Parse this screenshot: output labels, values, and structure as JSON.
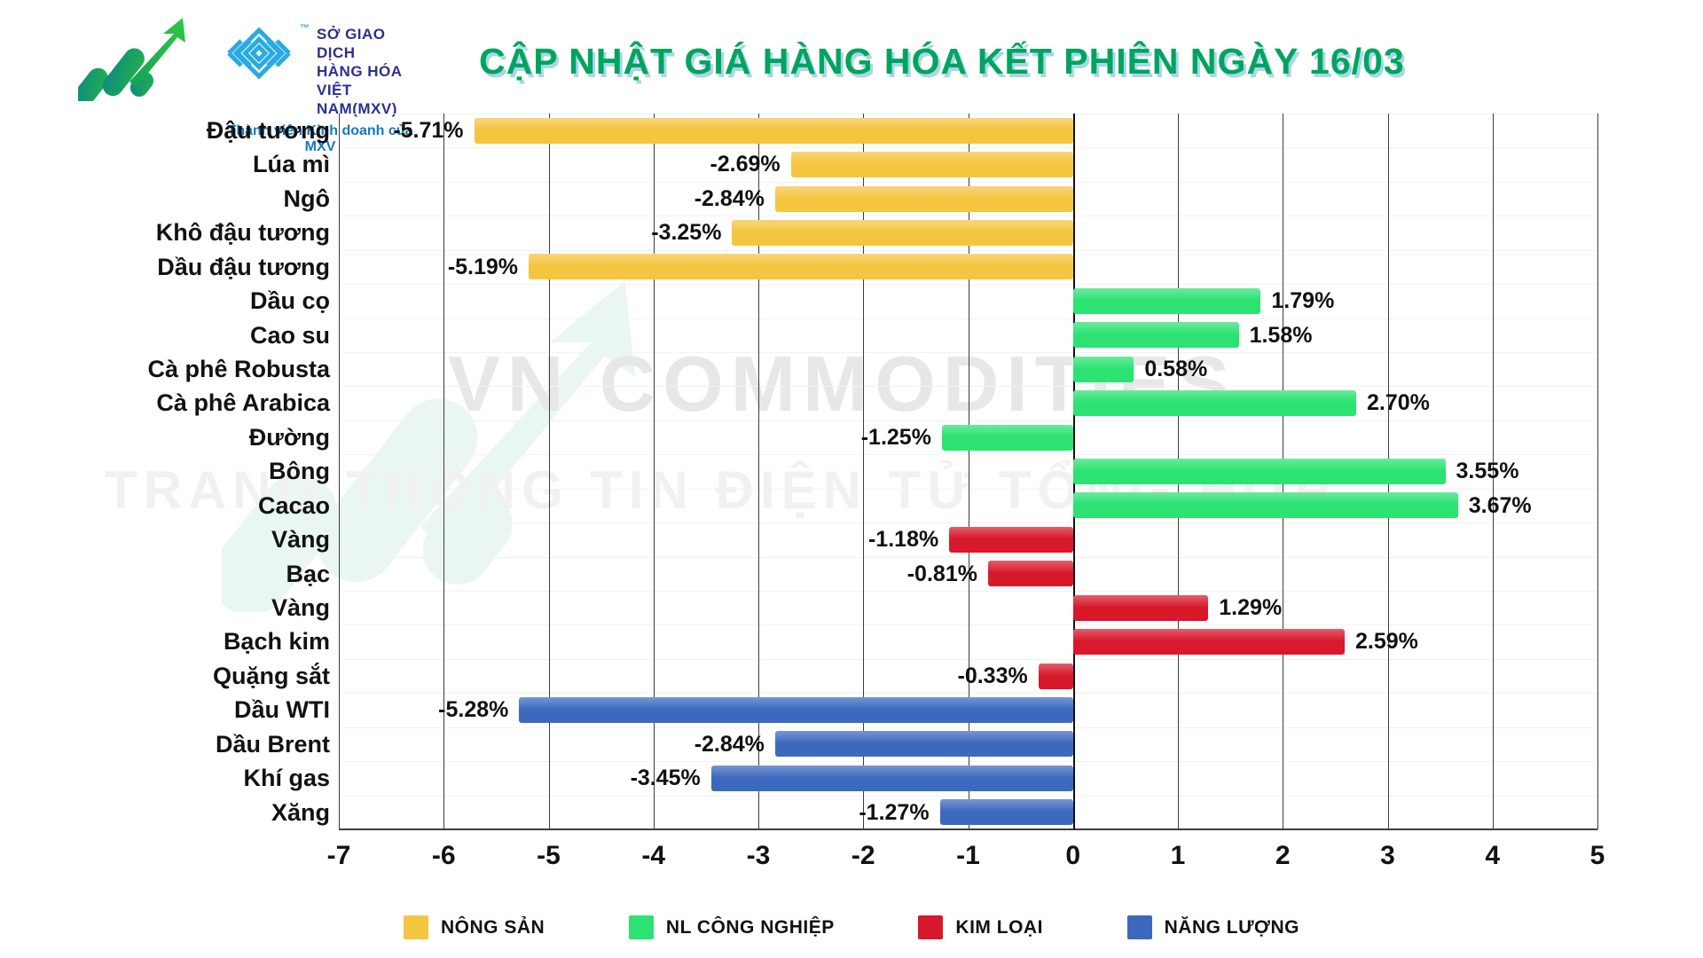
{
  "header": {
    "title": "CẬP NHẬT GIÁ HÀNG HÓA KẾT PHIÊN NGÀY 16/03",
    "mxv": {
      "trademark": "™",
      "name_lines": [
        "SỞ GIAO DỊCH",
        "HÀNG HÓA",
        "VIỆT NAM(MXV)"
      ],
      "member_text": "Thành viên Kinh doanh của MXV"
    }
  },
  "colors": {
    "title_green": "#00A45F",
    "title_shadow": "#A9D6E8",
    "mxv_navy": "#2D2F8F",
    "mxv_blue": "#29ABE2",
    "member_blue": "#1778BE",
    "gridline": "#3d3d3d",
    "row_line": "#f2f2f2",
    "watermark_1": "#e7e7e7",
    "watermark_2": "#f1f1f1",
    "watermark_logo_green": "#00A45F"
  },
  "watermarks": {
    "line1": "VN COMMODITIES",
    "line2": "TRANG THÔNG TIN ĐIỆN TỬ TỔNG HỢP"
  },
  "chart_data": {
    "type": "bar",
    "orientation": "horizontal",
    "title": "CẬP NHẬT GIÁ HÀNG HÓA KẾT PHIÊN NGÀY 16/03",
    "xlim": [
      -7,
      5
    ],
    "xticks": [
      -7,
      -6,
      -5,
      -4,
      -3,
      -2,
      -1,
      0,
      1,
      2,
      3,
      4,
      5
    ],
    "grid": true,
    "legend_position": "bottom",
    "rows": [
      {
        "category": "Đậu tương",
        "value": -5.71,
        "label": "-5.71%",
        "group": "NÔNG SẢN"
      },
      {
        "category": "Lúa mì",
        "value": -2.69,
        "label": "-2.69%",
        "group": "NÔNG SẢN"
      },
      {
        "category": "Ngô",
        "value": -2.84,
        "label": "-2.84%",
        "group": "NÔNG SẢN"
      },
      {
        "category": "Khô đậu tương",
        "value": -3.25,
        "label": "-3.25%",
        "group": "NÔNG SẢN"
      },
      {
        "category": "Dầu đậu tương",
        "value": -5.19,
        "label": "-5.19%",
        "group": "NÔNG SẢN"
      },
      {
        "category": "Dầu cọ",
        "value": 1.79,
        "label": "1.79%",
        "group": "NL CÔNG NGHIỆP"
      },
      {
        "category": "Cao su",
        "value": 1.58,
        "label": "1.58%",
        "group": "NL CÔNG NGHIỆP"
      },
      {
        "category": "Cà phê Robusta",
        "value": 0.58,
        "label": "0.58%",
        "group": "NL CÔNG NGHIỆP"
      },
      {
        "category": "Cà phê Arabica",
        "value": 2.7,
        "label": "2.70%",
        "group": "NL CÔNG NGHIỆP"
      },
      {
        "category": "Đường",
        "value": -1.25,
        "label": "-1.25%",
        "group": "NL CÔNG NGHIỆP"
      },
      {
        "category": "Bông",
        "value": 3.55,
        "label": "3.55%",
        "group": "NL CÔNG NGHIỆP"
      },
      {
        "category": "Cacao",
        "value": 3.67,
        "label": "3.67%",
        "group": "NL CÔNG NGHIỆP"
      },
      {
        "category": "Vàng",
        "value": -1.18,
        "label": "-1.18%",
        "group": "KIM LOẠI"
      },
      {
        "category": "Bạc",
        "value": -0.81,
        "label": "-0.81%",
        "group": "KIM LOẠI"
      },
      {
        "category": "Vàng",
        "value": 1.29,
        "label": "1.29%",
        "group": "KIM LOẠI"
      },
      {
        "category": "Bạch kim",
        "value": 2.59,
        "label": "2.59%",
        "group": "KIM LOẠI"
      },
      {
        "category": "Quặng sắt",
        "value": -0.33,
        "label": "-0.33%",
        "group": "KIM LOẠI"
      },
      {
        "category": "Dầu WTI",
        "value": -5.28,
        "label": "-5.28%",
        "group": "NĂNG LƯỢNG"
      },
      {
        "category": "Dầu Brent",
        "value": -2.84,
        "label": "-2.84%",
        "group": "NĂNG LƯỢNG"
      },
      {
        "category": "Khí gas",
        "value": -3.45,
        "label": "-3.45%",
        "group": "NĂNG LƯỢNG"
      },
      {
        "category": "Xăng",
        "value": -1.27,
        "label": "-1.27%",
        "group": "NĂNG LƯỢNG"
      }
    ],
    "legend": [
      {
        "label": "NÔNG SẢN",
        "color": "#F4C53F"
      },
      {
        "label": "NL CÔNG NGHIỆP",
        "color": "#2BE272"
      },
      {
        "label": "KIM LOẠI",
        "color": "#D8182B"
      },
      {
        "label": "NĂNG LƯỢNG",
        "color": "#3C69BE"
      }
    ]
  }
}
